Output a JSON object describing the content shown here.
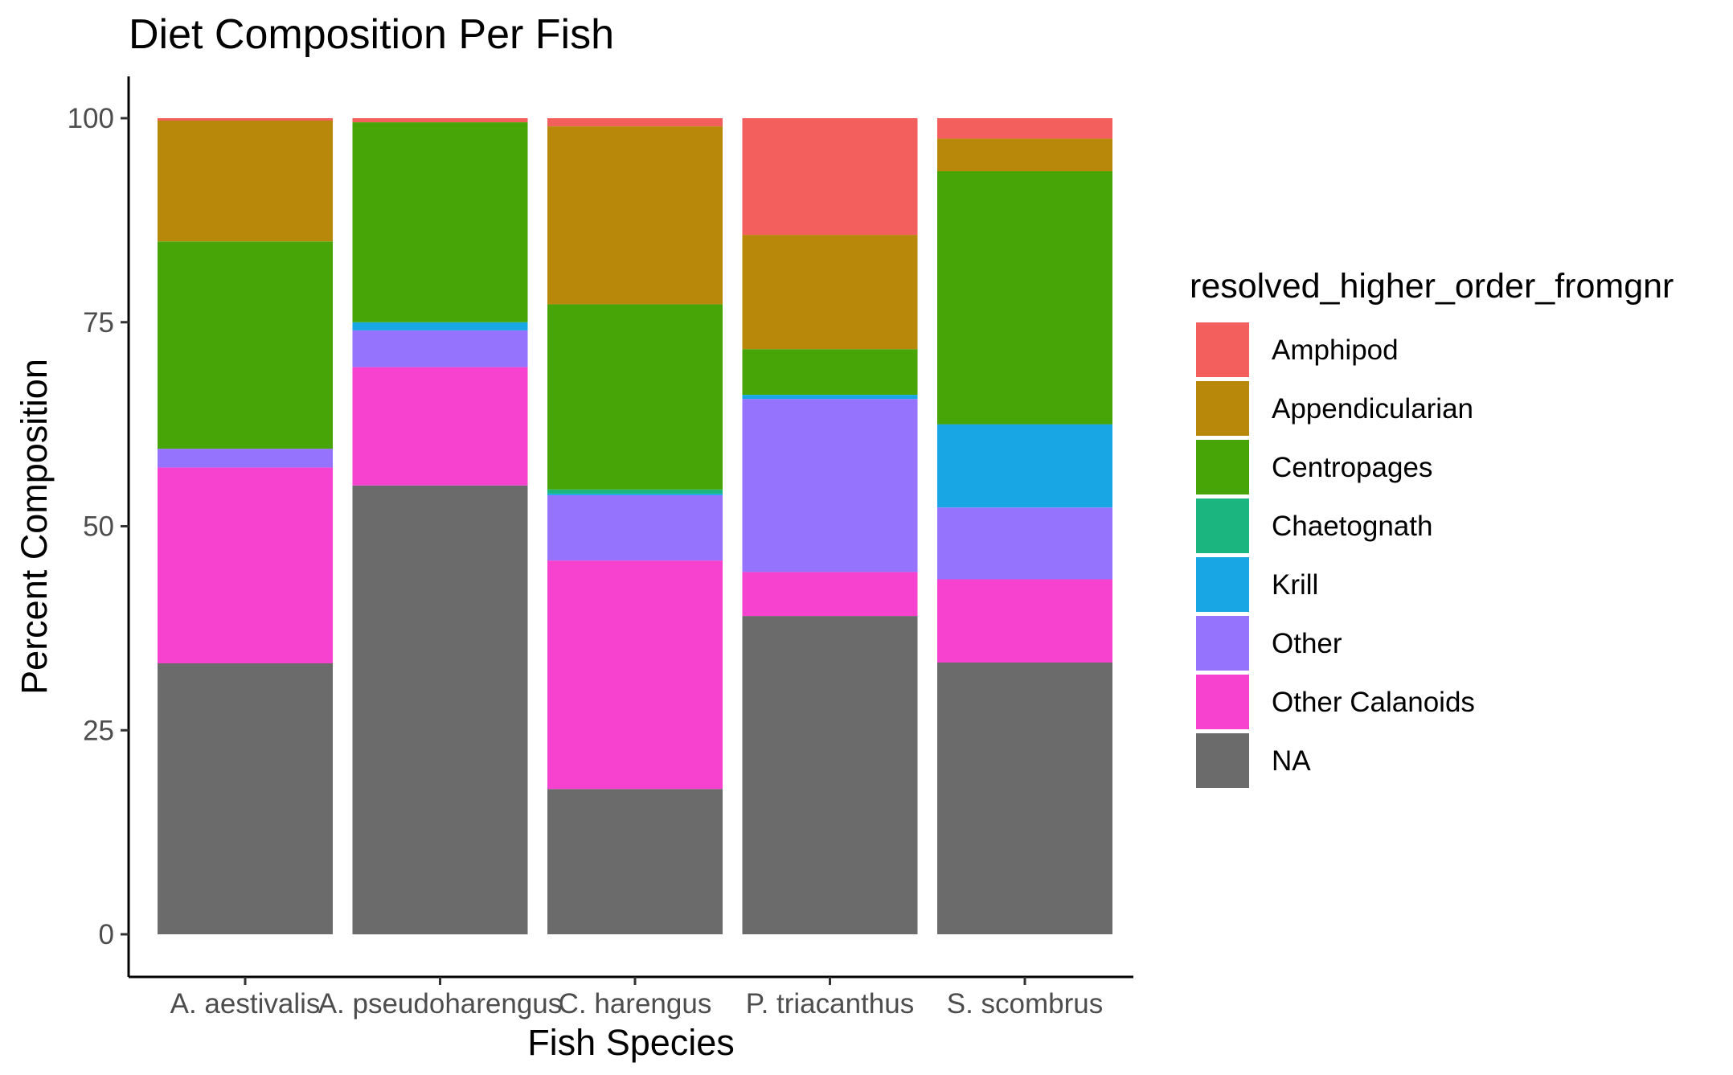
{
  "chart_data": {
    "type": "bar",
    "stacked": true,
    "title": "Diet Composition Per Fish",
    "xlabel": "Fish Species",
    "ylabel": "Percent Composition",
    "ylim": [
      0,
      100
    ],
    "yticks": [
      0,
      25,
      50,
      75,
      100
    ],
    "grid": false,
    "legend_position": "right",
    "legend_title": "resolved_higher_order_fromgnr",
    "categories": [
      "A. aestivalis",
      "A. pseudoharengus",
      "C. harengus",
      "P. triacanthus",
      "S. scombrus"
    ],
    "series": [
      {
        "name": "NA",
        "color": "#6b6b6b",
        "values": [
          33.2,
          55.0,
          17.8,
          39.0,
          33.3
        ]
      },
      {
        "name": "Other Calanoids",
        "color": "#f642cf",
        "values": [
          24.0,
          14.5,
          28.0,
          5.4,
          10.2
        ]
      },
      {
        "name": "Other",
        "color": "#9573fd",
        "values": [
          2.3,
          4.5,
          8.0,
          21.2,
          8.8
        ]
      },
      {
        "name": "Krill",
        "color": "#18a6e4",
        "values": [
          0.0,
          1.0,
          0.2,
          0.5,
          10.2
        ]
      },
      {
        "name": "Chaetognath",
        "color": "#1bb580",
        "values": [
          0.0,
          0.0,
          0.5,
          0.0,
          0.0
        ]
      },
      {
        "name": "Centropages",
        "color": "#47a507",
        "values": [
          25.4,
          24.5,
          22.7,
          5.6,
          31.0
        ]
      },
      {
        "name": "Appendicularian",
        "color": "#b8880b",
        "values": [
          14.8,
          0.0,
          21.8,
          14.0,
          4.0
        ]
      },
      {
        "name": "Amphipod",
        "color": "#f25f5c",
        "values": [
          0.3,
          0.5,
          1.0,
          14.3,
          2.5
        ]
      }
    ],
    "legend_order": [
      "Amphipod",
      "Appendicularian",
      "Centropages",
      "Chaetognath",
      "Krill",
      "Other",
      "Other Calanoids",
      "NA"
    ]
  }
}
